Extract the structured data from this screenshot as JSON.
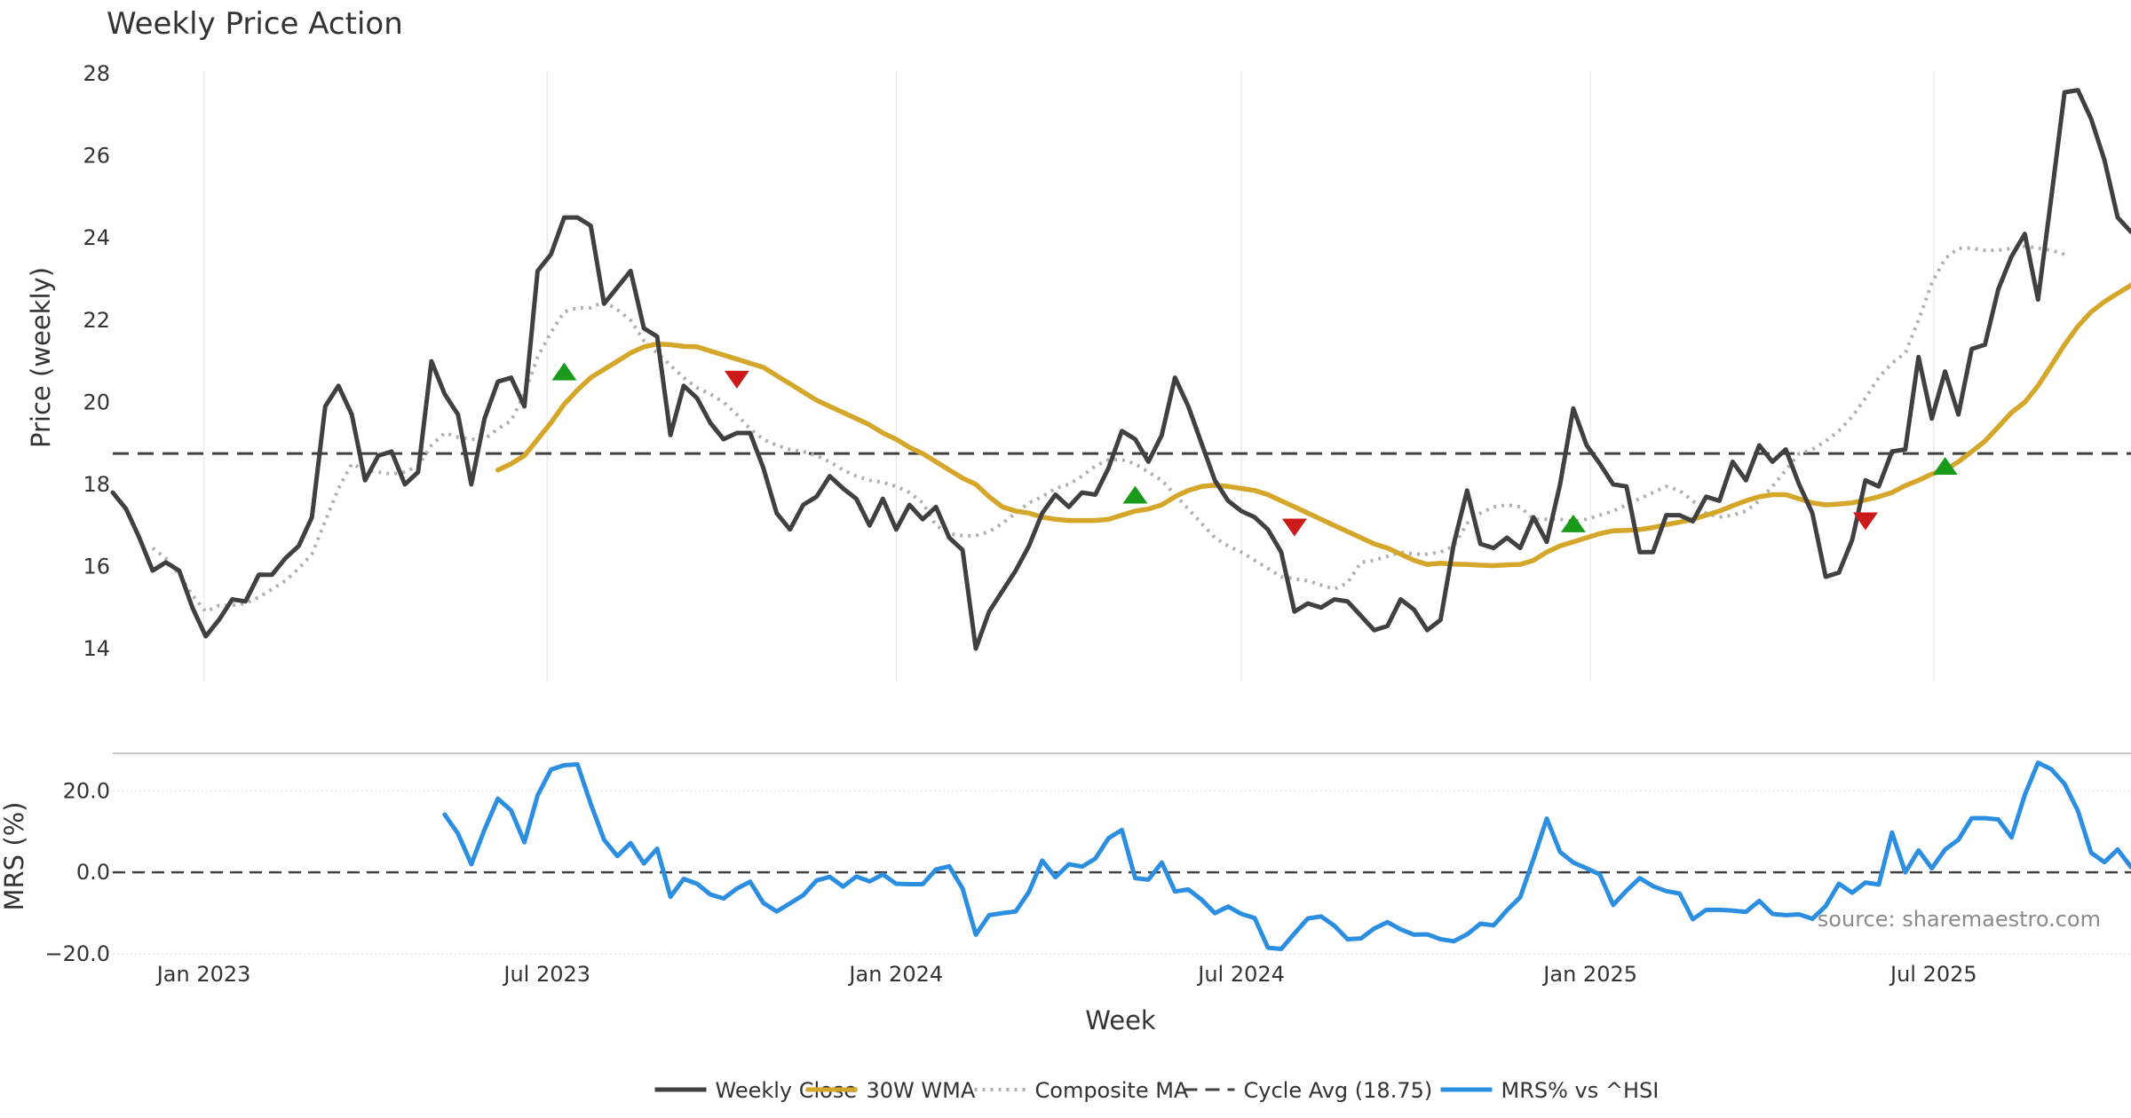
{
  "chart_data": {
    "type": "line",
    "title": "Weekly Price Action",
    "source": "source: sharemaestro.com",
    "xlabel": "Week",
    "x_start": "2022-11-14",
    "x_step_days": 7,
    "x_range": [
      "2022-11-14",
      "2025-10-13"
    ],
    "x_ticks": [
      {
        "date": "2023-01-01",
        "label": "Jan 2023"
      },
      {
        "date": "2023-07-01",
        "label": "Jul 2023"
      },
      {
        "date": "2024-01-01",
        "label": "Jan 2024"
      },
      {
        "date": "2024-07-01",
        "label": "Jul 2024"
      },
      {
        "date": "2025-01-01",
        "label": "Jan 2025"
      },
      {
        "date": "2025-07-01",
        "label": "Jul 2025"
      }
    ],
    "price_panel": {
      "ylabel": "Price (weekly)",
      "ylim": [
        13.2,
        28.5
      ],
      "yticks": [
        "14",
        "16",
        "18",
        "20",
        "22",
        "24",
        "26",
        "28"
      ],
      "cycle_avg": 18.75,
      "series": [
        {
          "name": "Weekly Close",
          "color": "#404040",
          "style": "solid",
          "start_index": 0,
          "values": [
            17.8,
            17.4,
            16.7,
            15.9,
            16.1,
            15.9,
            15.0,
            14.3,
            14.7,
            15.2,
            15.15,
            15.8,
            15.8,
            16.2,
            16.5,
            17.2,
            19.9,
            20.4,
            19.7,
            18.1,
            18.7,
            18.8,
            18.0,
            18.3,
            21.0,
            20.2,
            19.7,
            18.0,
            19.6,
            20.5,
            20.6,
            19.9,
            23.2,
            23.6,
            24.5,
            24.5,
            24.3,
            22.4,
            22.8,
            23.2,
            21.8,
            21.6,
            19.2,
            20.4,
            20.1,
            19.5,
            19.1,
            19.25,
            19.25,
            18.4,
            17.3,
            16.9,
            17.5,
            17.7,
            18.2,
            17.9,
            17.65,
            17.0,
            17.65,
            16.9,
            17.5,
            17.15,
            17.45,
            16.7,
            16.4,
            14.0,
            14.9,
            15.4,
            15.9,
            16.5,
            17.3,
            17.75,
            17.45,
            17.8,
            17.75,
            18.4,
            19.3,
            19.1,
            18.55,
            19.2,
            20.6,
            19.9,
            19.0,
            18.1,
            17.6,
            17.35,
            17.2,
            16.9,
            16.35,
            14.9,
            15.1,
            15.0,
            15.2,
            15.15,
            14.8,
            14.45,
            14.55,
            15.2,
            14.95,
            14.45,
            14.7,
            16.55,
            17.85,
            16.55,
            16.45,
            16.7,
            16.45,
            17.2,
            16.6,
            18.0,
            19.85,
            18.95,
            18.5,
            18.0,
            17.95,
            16.35,
            16.35,
            17.25,
            17.25,
            17.1,
            17.7,
            17.6,
            18.55,
            18.1,
            18.95,
            18.55,
            18.85,
            18.0,
            17.3,
            15.75,
            15.85,
            16.65,
            18.1,
            17.95,
            18.8,
            18.85,
            21.1,
            19.6,
            20.75,
            19.7,
            21.3,
            21.4,
            22.75,
            23.55,
            24.1,
            22.5,
            25.0,
            27.55,
            27.6,
            26.9,
            25.9,
            24.5,
            24.15,
            24.6,
            24.55,
            24.55,
            23.55,
            23.9,
            25.0
          ]
        },
        {
          "name": "30W WMA",
          "color": "#d4a62a",
          "style": "solid",
          "start_index": 29,
          "values": [
            18.35,
            18.5,
            18.7,
            19.1,
            19.5,
            19.95,
            20.3,
            20.6,
            20.8,
            21.0,
            21.2,
            21.35,
            21.42,
            21.4,
            21.36,
            21.35,
            21.25,
            21.15,
            21.05,
            20.95,
            20.85,
            20.65,
            20.45,
            20.25,
            20.05,
            19.9,
            19.75,
            19.6,
            19.45,
            19.25,
            19.1,
            18.9,
            18.75,
            18.55,
            18.35,
            18.15,
            18.0,
            17.7,
            17.45,
            17.35,
            17.3,
            17.2,
            17.15,
            17.12,
            17.12,
            17.12,
            17.15,
            17.25,
            17.35,
            17.4,
            17.5,
            17.7,
            17.85,
            17.95,
            17.98,
            17.95,
            17.9,
            17.85,
            17.75,
            17.6,
            17.45,
            17.3,
            17.15,
            17.0,
            16.85,
            16.7,
            16.55,
            16.45,
            16.3,
            16.15,
            16.05,
            16.08,
            16.06,
            16.05,
            16.03,
            16.02,
            16.04,
            16.05,
            16.15,
            16.35,
            16.5,
            16.6,
            16.7,
            16.8,
            16.87,
            16.88,
            16.9,
            16.95,
            17.02,
            17.08,
            17.15,
            17.25,
            17.35,
            17.48,
            17.6,
            17.7,
            17.75,
            17.75,
            17.65,
            17.55,
            17.5,
            17.52,
            17.55,
            17.62,
            17.7,
            17.8,
            17.97,
            18.1,
            18.25,
            18.35,
            18.55,
            18.8,
            19.05,
            19.4,
            19.75,
            20.0,
            20.4,
            20.9,
            21.4,
            21.85,
            22.2,
            22.45,
            22.65,
            22.85,
            23.05,
            23.25,
            23.42,
            23.5,
            23.62,
            23.8
          ]
        },
        {
          "name": "Composite MA",
          "color": "#b0b0b0",
          "style": "dotted",
          "start_index": 3,
          "values": [
            16.45,
            16.2,
            15.8,
            15.3,
            14.9,
            15.05,
            15.05,
            15.1,
            15.25,
            15.45,
            15.65,
            15.95,
            16.3,
            17.1,
            17.9,
            18.5,
            18.35,
            18.3,
            18.25,
            18.3,
            18.45,
            18.95,
            19.25,
            19.15,
            19.1,
            19.1,
            19.35,
            19.55,
            20.2,
            21.1,
            21.7,
            22.2,
            22.3,
            22.3,
            22.45,
            22.25,
            22.0,
            21.5,
            21.2,
            20.9,
            20.6,
            20.35,
            20.2,
            20.0,
            19.7,
            19.35,
            19.1,
            18.95,
            18.85,
            18.8,
            18.7,
            18.55,
            18.35,
            18.2,
            18.1,
            18.05,
            17.95,
            17.8,
            17.55,
            17.0,
            16.8,
            16.75,
            16.75,
            16.85,
            17.05,
            17.3,
            17.55,
            17.7,
            17.9,
            18.0,
            18.2,
            18.45,
            18.6,
            18.6,
            18.5,
            18.3,
            18.1,
            17.75,
            17.4,
            17.05,
            16.7,
            16.5,
            16.35,
            16.15,
            15.95,
            15.75,
            15.7,
            15.65,
            15.55,
            15.45,
            15.6,
            16.1,
            16.15,
            16.25,
            16.35,
            16.3,
            16.3,
            16.35,
            16.5,
            17.05,
            17.3,
            17.45,
            17.5,
            17.45,
            17.15,
            17.15,
            17.15,
            17.1,
            17.15,
            17.25,
            17.35,
            17.5,
            17.65,
            17.8,
            17.95,
            17.85,
            17.6,
            17.3,
            17.2,
            17.25,
            17.35,
            17.6,
            17.95,
            18.35,
            18.75,
            18.85,
            19.05,
            19.3,
            19.65,
            20.1,
            20.6,
            20.95,
            21.2,
            22.0,
            22.9,
            23.5,
            23.75,
            23.75,
            23.7,
            23.7,
            23.75,
            23.8,
            23.75,
            23.7,
            23.6
          ]
        }
      ],
      "signals": [
        {
          "type": "buy",
          "index": 34,
          "value": 20.75,
          "color": "#1a9a1a"
        },
        {
          "type": "sell",
          "index": 47,
          "value": 20.55,
          "color": "#cc1a1a"
        },
        {
          "type": "buy",
          "index": 77,
          "value": 17.75,
          "color": "#1a9a1a"
        },
        {
          "type": "sell",
          "index": 89,
          "value": 16.95,
          "color": "#cc1a1a"
        },
        {
          "type": "buy",
          "index": 110,
          "value": 17.05,
          "color": "#1a9a1a"
        },
        {
          "type": "sell",
          "index": 132,
          "value": 17.1,
          "color": "#cc1a1a"
        },
        {
          "type": "buy",
          "index": 138,
          "value": 18.45,
          "color": "#1a9a1a"
        }
      ]
    },
    "mrs_panel": {
      "ylabel": "MRS (%)",
      "ylim": [
        -20.0,
        29.0
      ],
      "yticks": [
        "20.0",
        "0.0",
        "−20.0"
      ],
      "zero_line": 0.0,
      "series": [
        {
          "name": "MRS% vs ^HSI",
          "color": "#2b8ee0",
          "style": "solid",
          "start_index": 25,
          "values": [
            14.2,
            9.5,
            2.0,
            10.5,
            18.1,
            15.2,
            7.4,
            18.9,
            25.2,
            26.3,
            26.5,
            16.8,
            8.0,
            4.0,
            7.2,
            2.2,
            5.8,
            -6.0,
            -1.6,
            -2.8,
            -5.4,
            -6.4,
            -4.0,
            -2.3,
            -7.5,
            -9.6,
            -7.6,
            -5.6,
            -2.0,
            -1.1,
            -3.5,
            -1.0,
            -2.2,
            -0.5,
            -2.8,
            -2.9,
            -2.9,
            0.7,
            1.5,
            -4.0,
            -15.3,
            -10.5,
            -10.0,
            -9.6,
            -4.8,
            2.9,
            -1.2,
            2.0,
            1.4,
            3.4,
            8.4,
            10.4,
            -1.4,
            -1.8,
            2.4,
            -4.7,
            -4.2,
            -6.7,
            -10.0,
            -8.4,
            -10.2,
            -11.2,
            -18.5,
            -18.8,
            -15.0,
            -11.3,
            -10.8,
            -13.1,
            -16.4,
            -16.2,
            -13.8,
            -12.2,
            -14.0,
            -15.3,
            -15.2,
            -16.4,
            -16.9,
            -15.2,
            -12.6,
            -13.0,
            -9.3,
            -6.1,
            3.3,
            13.2,
            5.0,
            2.4,
            1.0,
            -0.5,
            -8.0,
            -4.5,
            -1.4,
            -3.4,
            -4.6,
            -5.2,
            -11.5,
            -9.2,
            -9.2,
            -9.4,
            -9.7,
            -7.0,
            -10.2,
            -10.5,
            -10.3,
            -11.4,
            -8.3,
            -2.8,
            -5.0,
            -2.5,
            -3.0,
            9.8,
            0.0,
            5.4,
            1.0,
            5.6,
            8.0,
            13.3,
            13.3,
            13.0,
            8.6,
            19.0,
            26.9,
            25.3,
            21.7,
            15.1,
            4.8,
            2.5,
            5.6,
            1.3,
            4.6,
            3.7,
            2.7,
            5.6
          ]
        }
      ]
    },
    "legend": [
      {
        "label": "Weekly Close",
        "color": "#404040",
        "style": "solid"
      },
      {
        "label": "30W WMA",
        "color": "#d4a62a",
        "style": "solid"
      },
      {
        "label": "Composite MA",
        "color": "#b0b0b0",
        "style": "dotted"
      },
      {
        "label": "Cycle Avg (18.75)",
        "color": "#404040",
        "style": "dashed"
      },
      {
        "label": "MRS% vs ^HSI",
        "color": "#2b8ee0",
        "style": "solid"
      }
    ],
    "legend_position": "bottom-center",
    "grid": true
  }
}
